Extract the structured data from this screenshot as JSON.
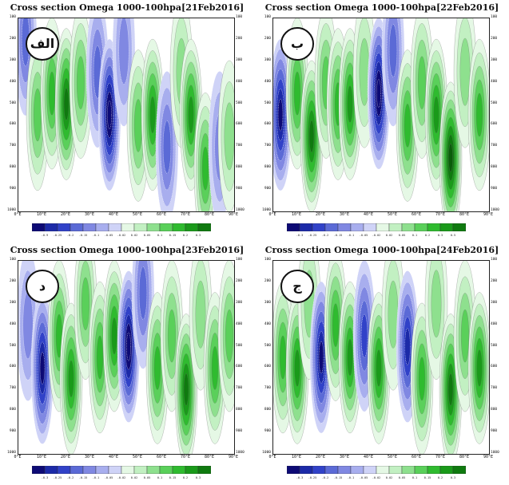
{
  "palette": {
    "neg": [
      "#0d0a75",
      "#1c2aa8",
      "#3142c8",
      "#5b6ad6",
      "#8088e2",
      "#a8aeee",
      "#cfd3f7"
    ],
    "pos": [
      "#e5f8e5",
      "#c2f0c2",
      "#8ee08e",
      "#5ad05a",
      "#2fbb2f",
      "#1a9a1a",
      "#0f7a0f",
      "#0a5d0a"
    ]
  },
  "chart_data": [
    {
      "type": "heatmap",
      "title": "Cross section Omega 1000-100hpa[21Feb2016]",
      "label": "الف",
      "yticks": [
        "100",
        "200",
        "300",
        "400",
        "500",
        "600",
        "700",
        "800",
        "900",
        "1000"
      ],
      "xticks": [
        "0°E",
        "10°E",
        "20°E",
        "30°E",
        "40°E",
        "50°E",
        "60°E",
        "70°E",
        "80°E",
        "90°E"
      ],
      "xlim": [
        0,
        90
      ],
      "ylim": [
        1000,
        100
      ],
      "colorbar": [
        "-0.9",
        "-0.25",
        "-0.2",
        "-0.15",
        "-0.1",
        "-0.05",
        "-0.02",
        "0.02",
        "0.05",
        "0.1",
        "0.15",
        "0.2",
        "0.3"
      ],
      "cells": [
        {
          "lon": 3,
          "p": 200,
          "lvl": -3
        },
        {
          "lon": 8,
          "p": 550,
          "lvl": 3
        },
        {
          "lon": 14,
          "p": 450,
          "lvl": 4
        },
        {
          "lon": 20,
          "p": 500,
          "lvl": 6
        },
        {
          "lon": 26,
          "p": 400,
          "lvl": 3
        },
        {
          "lon": 33,
          "p": 350,
          "lvl": -3
        },
        {
          "lon": 38,
          "p": 550,
          "lvl": -7
        },
        {
          "lon": 44,
          "p": 250,
          "lvl": -2
        },
        {
          "lon": 50,
          "p": 600,
          "lvl": 3
        },
        {
          "lon": 56,
          "p": 550,
          "lvl": 5
        },
        {
          "lon": 62,
          "p": 700,
          "lvl": -3
        },
        {
          "lon": 68,
          "p": 350,
          "lvl": 2
        },
        {
          "lon": 72,
          "p": 550,
          "lvl": 5
        },
        {
          "lon": 78,
          "p": 800,
          "lvl": 4
        },
        {
          "lon": 84,
          "p": 700,
          "lvl": -2
        },
        {
          "lon": 88,
          "p": 650,
          "lvl": 2
        }
      ]
    },
    {
      "type": "heatmap",
      "title": "Cross section Omega 1000-100hpa[22Feb2016]",
      "label": "ب",
      "yticks": [
        "100",
        "200",
        "300",
        "400",
        "500",
        "600",
        "700",
        "800",
        "900",
        "1000"
      ],
      "xticks": [
        "0°E",
        "10°E",
        "20°E",
        "30°E",
        "40°E",
        "50°E",
        "60°E",
        "70°E",
        "80°E",
        "90°E"
      ],
      "xlim": [
        0,
        90
      ],
      "ylim": [
        1000,
        100
      ],
      "colorbar": [
        "-0.3",
        "-0.25",
        "-0.2",
        "-0.15",
        "-0.1",
        "-0.05",
        "-0.02",
        "0.02",
        "0.05",
        "0.1",
        "0.2",
        "0.3",
        "0.5"
      ],
      "cells": [
        {
          "lon": 3,
          "p": 550,
          "lvl": -6
        },
        {
          "lon": 10,
          "p": 450,
          "lvl": 4
        },
        {
          "lon": 16,
          "p": 650,
          "lvl": 6
        },
        {
          "lon": 22,
          "p": 400,
          "lvl": 3
        },
        {
          "lon": 27,
          "p": 500,
          "lvl": 4
        },
        {
          "lon": 32,
          "p": 500,
          "lvl": 5
        },
        {
          "lon": 38,
          "p": 350,
          "lvl": 2
        },
        {
          "lon": 44,
          "p": 450,
          "lvl": -7
        },
        {
          "lon": 50,
          "p": 250,
          "lvl": -3
        },
        {
          "lon": 56,
          "p": 600,
          "lvl": 4
        },
        {
          "lon": 62,
          "p": 400,
          "lvl": 3
        },
        {
          "lon": 68,
          "p": 550,
          "lvl": 5
        },
        {
          "lon": 74,
          "p": 750,
          "lvl": 7
        },
        {
          "lon": 80,
          "p": 350,
          "lvl": 2
        },
        {
          "lon": 86,
          "p": 550,
          "lvl": 4
        }
      ]
    },
    {
      "type": "heatmap",
      "title": "Cross section Omega 1000-100hpa[23Feb2016]",
      "label": "د",
      "yticks": [
        "100",
        "200",
        "300",
        "400",
        "500",
        "600",
        "700",
        "800",
        "900",
        "1000"
      ],
      "xticks": [
        "0°E",
        "10°E",
        "20°E",
        "30°E",
        "40°E",
        "50°E",
        "60°E",
        "70°E",
        "80°E",
        "90°E"
      ],
      "xlim": [
        0,
        90
      ],
      "ylim": [
        1000,
        100
      ],
      "colorbar": [
        "-0.3",
        "-0.25",
        "-0.2",
        "-0.15",
        "-0.1",
        "-0.05",
        "-0.02",
        "0.02",
        "0.05",
        "0.1",
        "0.15",
        "0.2",
        "0.3"
      ],
      "cells": [
        {
          "lon": 4,
          "p": 400,
          "lvl": -2
        },
        {
          "lon": 10,
          "p": 600,
          "lvl": -6
        },
        {
          "lon": 17,
          "p": 450,
          "lvl": 4
        },
        {
          "lon": 22,
          "p": 650,
          "lvl": 5
        },
        {
          "lon": 28,
          "p": 300,
          "lvl": 3
        },
        {
          "lon": 34,
          "p": 550,
          "lvl": 4
        },
        {
          "lon": 40,
          "p": 450,
          "lvl": 5
        },
        {
          "lon": 46,
          "p": 500,
          "lvl": -7
        },
        {
          "lon": 52,
          "p": 250,
          "lvl": -3
        },
        {
          "lon": 58,
          "p": 600,
          "lvl": 4
        },
        {
          "lon": 64,
          "p": 450,
          "lvl": 3
        },
        {
          "lon": 70,
          "p": 700,
          "lvl": 6
        },
        {
          "lon": 76,
          "p": 350,
          "lvl": 2
        },
        {
          "lon": 82,
          "p": 600,
          "lvl": 4
        },
        {
          "lon": 88,
          "p": 450,
          "lvl": 3
        }
      ]
    },
    {
      "type": "heatmap",
      "title": "Cross section Omega 1000-100hpa[24Feb2016]",
      "label": "ج",
      "yticks": [
        "100",
        "200",
        "300",
        "400",
        "500",
        "600",
        "700",
        "800",
        "900",
        "1000"
      ],
      "xticks": [
        "0°E",
        "10°E",
        "20°E",
        "30°E",
        "40°E",
        "50°E",
        "60°E",
        "70°E",
        "80°E",
        "90°E"
      ],
      "xlim": [
        0,
        90
      ],
      "ylim": [
        1000,
        100
      ],
      "colorbar": [
        "-0.3",
        "-0.25",
        "-0.2",
        "-0.15",
        "-0.1",
        "-0.05",
        "-0.02",
        "0.02",
        "0.05",
        "0.1",
        "0.15",
        "0.2",
        "0.3"
      ],
      "cells": [
        {
          "lon": 4,
          "p": 550,
          "lvl": 4
        },
        {
          "lon": 10,
          "p": 600,
          "lvl": 5
        },
        {
          "lon": 15,
          "p": 300,
          "lvl": 2
        },
        {
          "lon": 20,
          "p": 550,
          "lvl": -6
        },
        {
          "lon": 26,
          "p": 400,
          "lvl": 4
        },
        {
          "lon": 32,
          "p": 550,
          "lvl": 5
        },
        {
          "lon": 38,
          "p": 450,
          "lvl": -4
        },
        {
          "lon": 44,
          "p": 600,
          "lvl": 5
        },
        {
          "lon": 50,
          "p": 350,
          "lvl": 2
        },
        {
          "lon": 56,
          "p": 500,
          "lvl": -5
        },
        {
          "lon": 62,
          "p": 650,
          "lvl": 4
        },
        {
          "lon": 68,
          "p": 300,
          "lvl": 2
        },
        {
          "lon": 74,
          "p": 700,
          "lvl": 6
        },
        {
          "lon": 80,
          "p": 450,
          "lvl": 3
        },
        {
          "lon": 86,
          "p": 600,
          "lvl": 5
        }
      ]
    }
  ]
}
